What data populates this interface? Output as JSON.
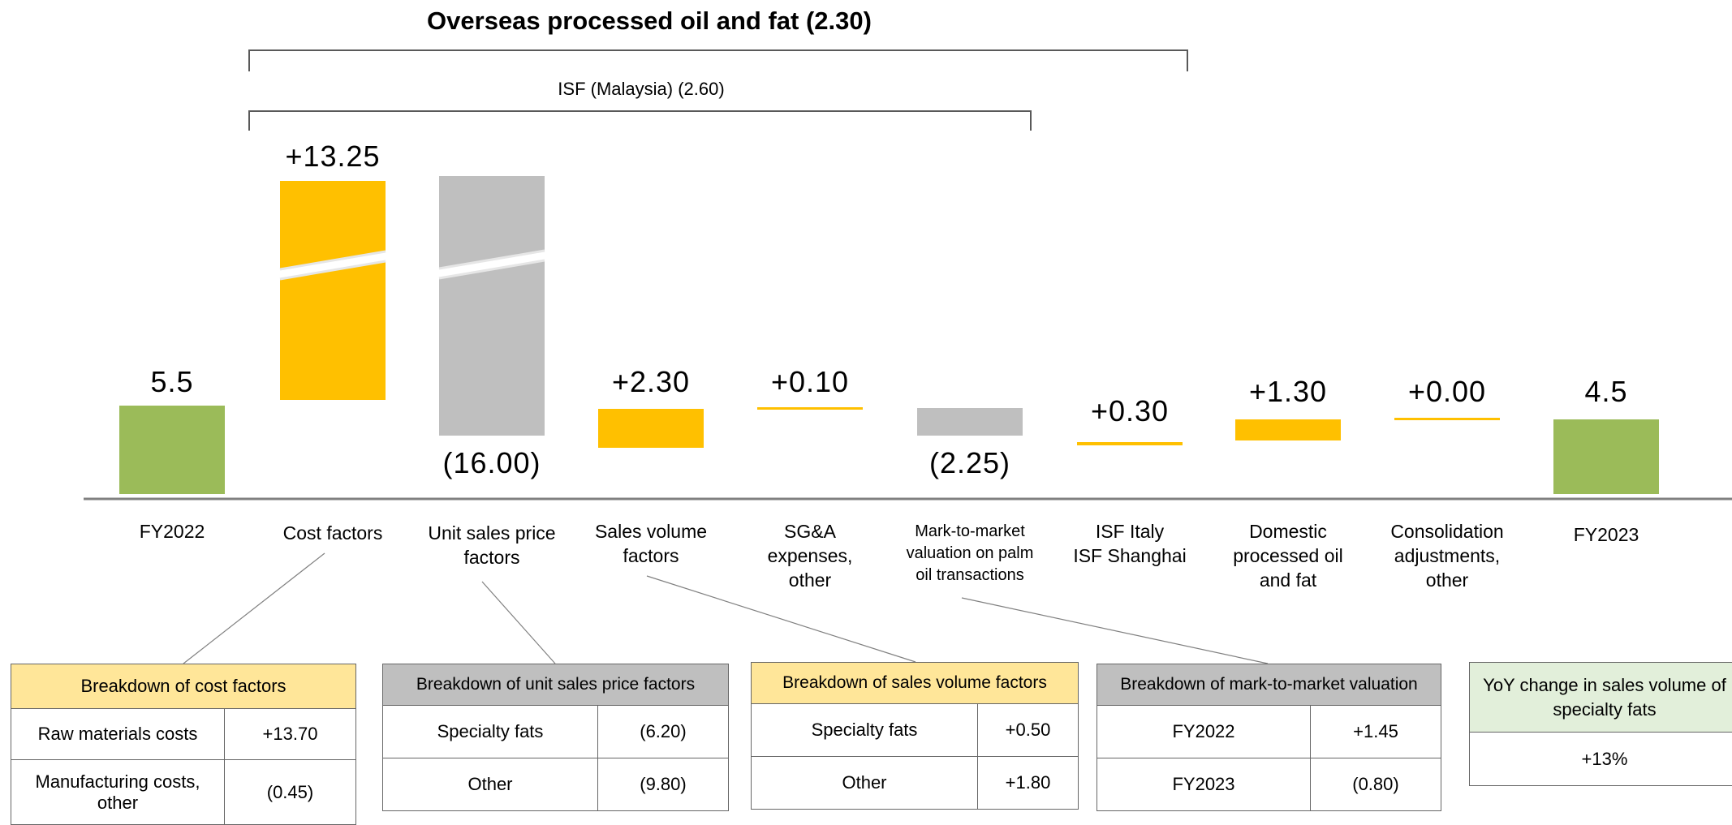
{
  "chart_data": {
    "type": "bar",
    "subtype": "waterfall",
    "title": "Overseas processed oil and fat (2.30)",
    "group_label": "ISF (Malaysia) (2.60)",
    "categories": [
      "FY2022",
      "Cost factors",
      "Unit sales price factors",
      "Sales volume factors",
      "SG&A expenses, other",
      "Mark-to-market valuation on palm oil transactions",
      "ISF Italy ISF Shanghai",
      "Domestic processed oil and fat",
      "Consolidation adjustments, other",
      "FY2023"
    ],
    "category_lines": [
      [
        "FY2022"
      ],
      [
        "Cost factors"
      ],
      [
        "Unit sales price",
        "factors"
      ],
      [
        "Sales volume",
        "factors"
      ],
      [
        "SG&A",
        "expenses,",
        "other"
      ],
      [
        "Mark-to-market",
        "valuation on palm",
        "oil transactions"
      ],
      [
        "ISF Italy",
        "ISF Shanghai"
      ],
      [
        "Domestic",
        "processed oil",
        "and fat"
      ],
      [
        "Consolidation",
        "adjustments,",
        "other"
      ],
      [
        "FY2023"
      ]
    ],
    "values": [
      5.5,
      13.25,
      -16.0,
      2.3,
      0.1,
      -2.25,
      0.3,
      1.3,
      0.0,
      4.5
    ],
    "value_labels": [
      "5.5",
      "+13.25",
      "(16.00)",
      "+2.30",
      "+0.10",
      "(2.25)",
      "+0.30",
      "+1.30",
      "+0.00",
      "4.5"
    ],
    "bar_kinds": [
      "total",
      "increase",
      "decrease",
      "increase",
      "increase",
      "decrease",
      "increase",
      "increase",
      "increase",
      "total"
    ],
    "axis_break_on": [
      "Cost factors",
      "Unit sales price factors"
    ],
    "colors": {
      "total": "#9BBB59",
      "increase": "#FFC000",
      "decrease": "#BFBFBF",
      "axis": "#808080",
      "bracket": "#595959"
    }
  },
  "breakdowns": {
    "cost": {
      "title": "Breakdown of cost factors",
      "rows": [
        {
          "label": "Raw materials costs",
          "value": "+13.70"
        },
        {
          "label": "Manufacturing costs, other",
          "value": "(0.45)"
        }
      ]
    },
    "price": {
      "title": "Breakdown of unit sales price factors",
      "rows": [
        {
          "label": "Specialty fats",
          "value": "(6.20)"
        },
        {
          "label": "Other",
          "value": "(9.80)"
        }
      ]
    },
    "volume": {
      "title": "Breakdown of sales volume factors",
      "rows": [
        {
          "label": "Specialty fats",
          "value": "+0.50"
        },
        {
          "label": "Other",
          "value": "+1.80"
        }
      ]
    },
    "mtm": {
      "title": "Breakdown of mark-to-market valuation",
      "rows": [
        {
          "label": "FY2022",
          "value": "+1.45"
        },
        {
          "label": "FY2023",
          "value": "(0.80)"
        }
      ]
    },
    "specialty": {
      "title": "YoY change in sales volume of specialty fats",
      "value": "+13%"
    }
  }
}
